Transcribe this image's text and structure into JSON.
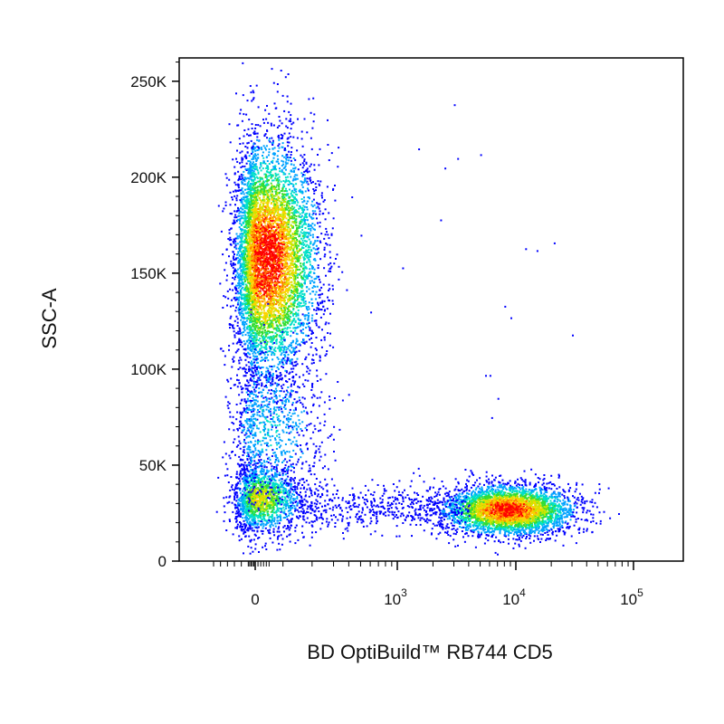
{
  "chart_data": {
    "type": "scatter",
    "subtype": "flow-cytometry-density-dot-plot",
    "xlabel": "BD OptiBuild™ RB744 CD5",
    "ylabel": "SSC-A",
    "x_scale": "biexponential",
    "y_scale": "linear",
    "xlim": [
      -300,
      100000
    ],
    "ylim": [
      0,
      262144
    ],
    "y_ticks": [
      {
        "value": 0,
        "label": "0"
      },
      {
        "value": 50000,
        "label": "50K"
      },
      {
        "value": 100000,
        "label": "100K"
      },
      {
        "value": 150000,
        "label": "150K"
      },
      {
        "value": 200000,
        "label": "200K"
      },
      {
        "value": 250000,
        "label": "250K"
      }
    ],
    "x_ticks": [
      {
        "value": 0,
        "base": "0",
        "exp": ""
      },
      {
        "value": 1000,
        "base": "10",
        "exp": "3"
      },
      {
        "value": 10000,
        "base": "10",
        "exp": "4"
      },
      {
        "value": 100000,
        "base": "10",
        "exp": "5"
      }
    ],
    "density_colors": [
      "#0000ff",
      "#00a2ff",
      "#00e0c8",
      "#33dd33",
      "#c8e600",
      "#ffd200",
      "#ff7a00",
      "#ff0000"
    ],
    "populations": [
      {
        "name": "CD5- high SSC",
        "x_center": 40,
        "x_spread": 90,
        "y_center": 158000,
        "y_spread": 30000,
        "count": 6200,
        "peak_density": 1.0
      },
      {
        "name": "CD5- low SSC",
        "x_center": 10,
        "x_spread": 80,
        "y_center": 33000,
        "y_spread": 9000,
        "count": 1600,
        "peak_density": 0.6
      },
      {
        "name": "CD5- intermediate SSC",
        "x_center": 40,
        "x_spread": 110,
        "y_center": 70000,
        "y_spread": 22000,
        "count": 900,
        "peak_density": 0.25
      },
      {
        "name": "CD5+ lymphocytes",
        "x_center": 8500,
        "x_spread_log10": 0.28,
        "y_center": 27000,
        "y_spread": 6500,
        "count": 3600,
        "peak_density": 0.95
      },
      {
        "name": "transition",
        "x_range": [
          150,
          4000
        ],
        "y_center": 28000,
        "y_spread": 6000,
        "count": 500,
        "peak_density": 0.1
      }
    ],
    "outliers": [
      {
        "x": 3000,
        "y": 238000
      },
      {
        "x": 1500,
        "y": 215000
      },
      {
        "x": 5000,
        "y": 212000
      },
      {
        "x": 2500,
        "y": 205000
      },
      {
        "x": 3200,
        "y": 210000
      },
      {
        "x": 2300,
        "y": 178000
      },
      {
        "x": 12000,
        "y": 163000
      },
      {
        "x": 15000,
        "y": 162000
      },
      {
        "x": 21000,
        "y": 166000
      },
      {
        "x": 1100,
        "y": 153000
      },
      {
        "x": 8000,
        "y": 133000
      },
      {
        "x": 9000,
        "y": 127000
      },
      {
        "x": 30000,
        "y": 118000
      },
      {
        "x": 6000,
        "y": 97000
      },
      {
        "x": 5500,
        "y": 97000
      },
      {
        "x": 7000,
        "y": 85000
      },
      {
        "x": 6200,
        "y": 75000
      },
      {
        "x": 600,
        "y": 130000
      },
      {
        "x": 500,
        "y": 170000
      },
      {
        "x": 420,
        "y": 190000
      }
    ],
    "grid": false,
    "legend": "none"
  }
}
